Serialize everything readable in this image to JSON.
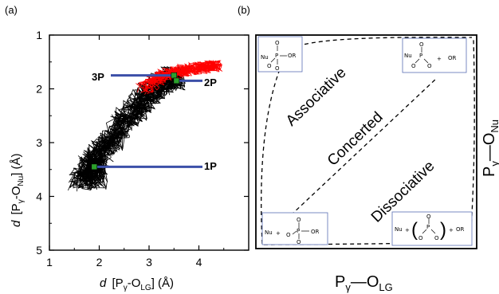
{
  "panel_a": {
    "label": "(a)",
    "y_axis": {
      "prefix": "d",
      "main": "[P",
      "sub1": "γ",
      "mid": "-O",
      "sub2": "Nu",
      "suffix": "] (Å)"
    },
    "x_axis": {
      "prefix": "d",
      "main": "[P",
      "sub1": "γ",
      "mid": "-O",
      "sub2": "LG",
      "suffix": "] (Å)"
    },
    "annotations": [
      "3P",
      "2P",
      "1P"
    ],
    "colors": {
      "trajectory_a": "#000000",
      "trajectory_b": "#ff0000",
      "marker_line": "#3b4fa8",
      "marker": "#2ca02c"
    }
  },
  "panel_b": {
    "label": "(b)",
    "regions": [
      "Associative",
      "Concerted",
      "Dissociative"
    ],
    "x_axis": {
      "main": "P",
      "sub": "γ",
      "rest": "—O",
      "sub2": "LG"
    },
    "y_axis": {
      "main": "P",
      "sub": "γ",
      "rest": "—O",
      "sub2": "Nu"
    },
    "corner_boxes": {
      "top_left": {
        "text": [
          "Nu",
          "O",
          "P",
          "OR",
          "O",
          "O"
        ]
      },
      "top_right": {
        "text": [
          "Nu",
          "O",
          "P",
          "O",
          "O",
          "+",
          "OR"
        ]
      },
      "bottom_left": {
        "text": [
          "Nu",
          "+",
          "O",
          "P",
          "OR",
          "O",
          "O"
        ]
      },
      "bottom_right": {
        "text": [
          "Nu",
          "+",
          "O",
          "P",
          "O",
          "O",
          "+",
          "OR"
        ]
      }
    }
  },
  "chart_data": {
    "type": "line",
    "title": "",
    "xlabel": "d [Pγ-OLG] (Å)",
    "ylabel": "d [Pγ-ONu] (Å)",
    "xlim": [
      1,
      5
    ],
    "ylim": [
      5,
      1
    ],
    "y_inverted": true,
    "x_ticks": [
      1,
      2,
      3,
      4
    ],
    "y_ticks": [
      1,
      2,
      3,
      4,
      5
    ],
    "grid": false,
    "series": [
      {
        "color": "#000000",
        "x": [
          1.6,
          1.8,
          1.9,
          2.1,
          2.3,
          2.5,
          2.7,
          2.9,
          3.1,
          3.3,
          3.5
        ],
        "y": [
          3.7,
          3.5,
          3.3,
          3.1,
          2.9,
          2.6,
          2.4,
          2.2,
          2.0,
          1.9,
          1.8
        ]
      },
      {
        "color": "#ff0000",
        "x": [
          2.9,
          3.1,
          3.3,
          3.5,
          3.7,
          3.9,
          4.1,
          4.3
        ],
        "y": [
          2.0,
          1.85,
          1.75,
          1.7,
          1.65,
          1.62,
          1.6,
          1.58
        ]
      }
    ],
    "markers": [
      {
        "name": "3P",
        "x": 3.5,
        "y": 1.75
      },
      {
        "name": "2P",
        "x": 3.55,
        "y": 1.85
      },
      {
        "name": "1P",
        "x": 1.9,
        "y": 3.45
      }
    ]
  }
}
